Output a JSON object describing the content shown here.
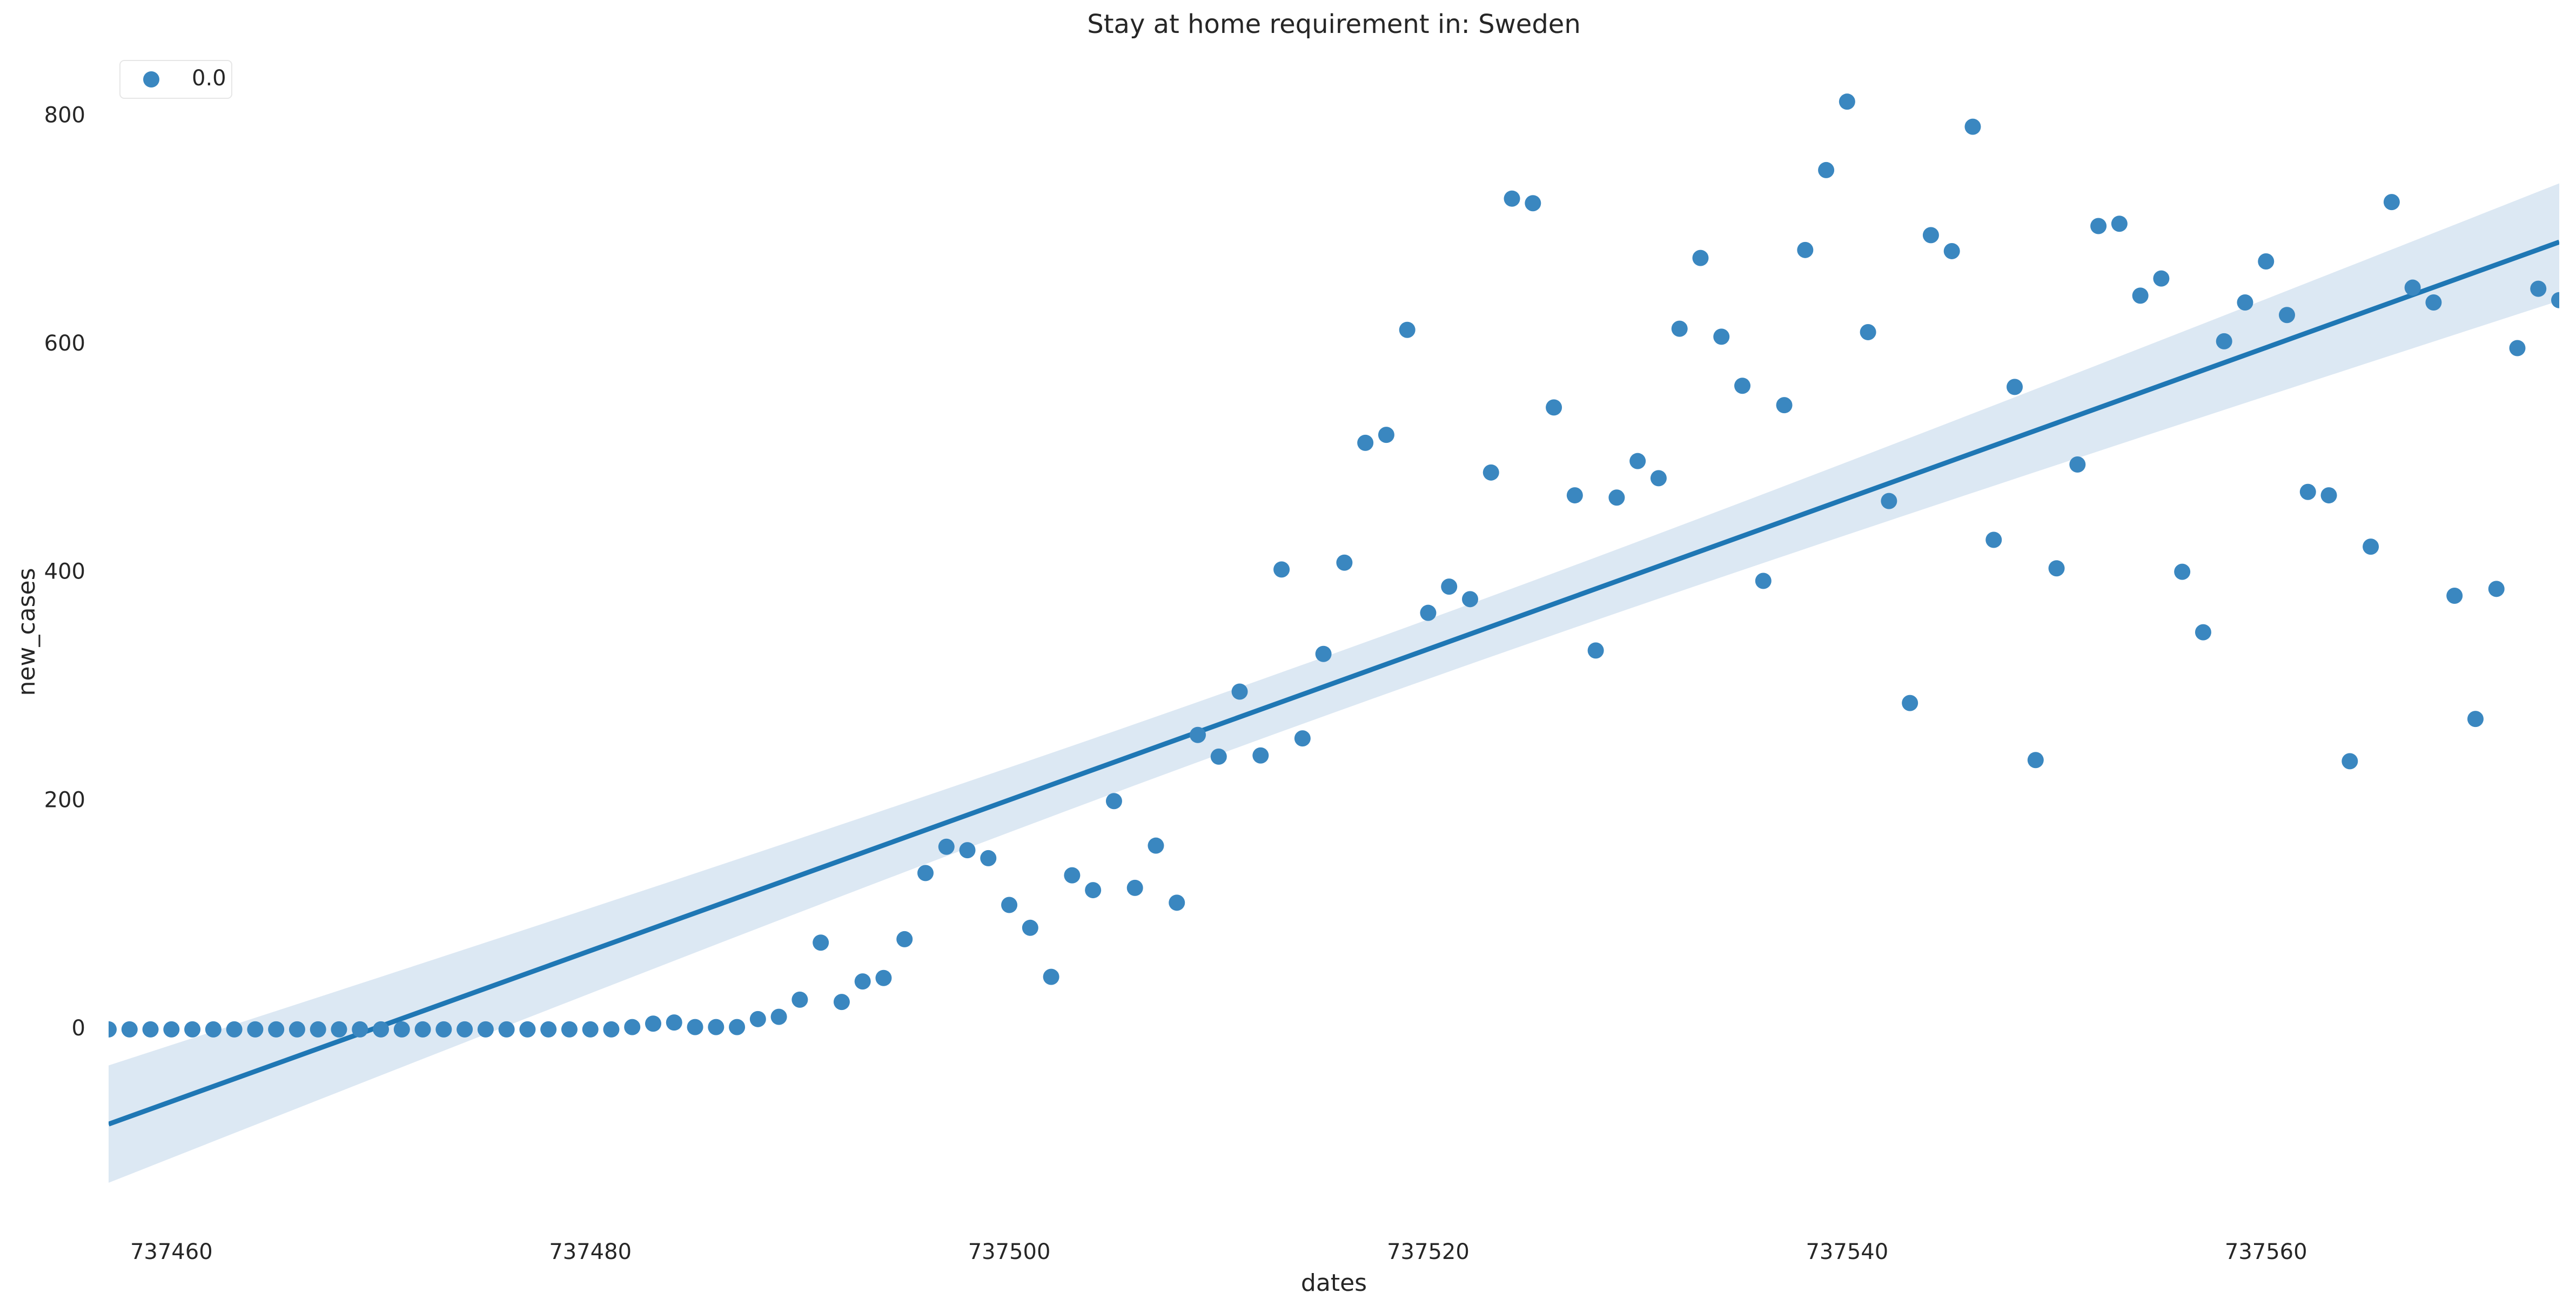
{
  "chart_data": {
    "type": "scatter",
    "title": "Stay at home requirement in: Sweden",
    "x_label": "dates",
    "y_label": "new_cases",
    "x": [
      737457,
      737458,
      737459,
      737460,
      737461,
      737462,
      737463,
      737464,
      737465,
      737466,
      737467,
      737468,
      737469,
      737470,
      737471,
      737472,
      737473,
      737474,
      737475,
      737476,
      737477,
      737478,
      737479,
      737480,
      737481,
      737482,
      737483,
      737484,
      737485,
      737486,
      737487,
      737488,
      737489,
      737490,
      737491,
      737492,
      737493,
      737494,
      737495,
      737496,
      737497,
      737498,
      737499,
      737500,
      737501,
      737502,
      737503,
      737504,
      737505,
      737506,
      737507,
      737508,
      737509,
      737510,
      737511,
      737512,
      737513,
      737514,
      737515,
      737516,
      737517,
      737518,
      737519,
      737520,
      737521,
      737522,
      737523,
      737524,
      737525,
      737526,
      737527,
      737528,
      737529,
      737530,
      737531,
      737532,
      737533,
      737534,
      737535,
      737536,
      737537,
      737538,
      737539,
      737540,
      737541,
      737542,
      737543,
      737544,
      737545,
      737546,
      737547,
      737548,
      737549,
      737550,
      737551,
      737552,
      737553,
      737554,
      737555,
      737556,
      737557,
      737558,
      737559,
      737560,
      737561,
      737562,
      737563,
      737564,
      737565,
      737566,
      737567,
      737568,
      737569,
      737570,
      737571,
      737572,
      737573,
      737574
    ],
    "series": [
      {
        "name": "0.0",
        "color": "#3a87c0",
        "values": [
          0,
          0,
          0,
          0,
          0,
          0,
          0,
          0,
          0,
          0,
          0,
          0,
          0,
          0,
          0,
          0,
          0,
          0,
          0,
          0,
          0,
          0,
          0,
          0,
          0,
          2,
          5,
          6,
          2,
          2,
          2,
          9,
          11,
          26,
          76,
          24,
          42,
          45,
          79,
          137,
          160,
          157,
          150,
          109,
          89,
          46,
          135,
          122,
          200,
          124,
          161,
          111,
          258,
          239,
          296,
          240,
          403,
          255,
          329,
          409,
          514,
          521,
          613,
          365,
          388,
          377,
          488,
          728,
          724,
          545,
          468,
          332,
          466,
          498,
          483,
          614,
          676,
          607,
          564,
          393,
          547,
          683,
          753,
          813,
          611,
          463,
          286,
          696,
          682,
          791,
          429,
          563,
          236,
          404,
          495,
          704,
          706,
          643,
          658,
          401,
          348,
          603,
          637,
          673,
          626,
          471,
          468,
          235,
          423,
          725,
          650,
          637,
          380,
          272,
          386,
          597,
          649,
          639
        ]
      }
    ],
    "xlim": [
      737457,
      737574
    ],
    "ylim": [
      -170,
      850
    ],
    "xticks": [
      737460,
      737480,
      737500,
      737520,
      737540,
      737560
    ],
    "yticks": [
      0,
      200,
      400,
      600,
      800
    ],
    "grid": false,
    "legend": "upper left",
    "regression": true,
    "line_color": "#1f77b4",
    "band_color": "#dce8f3"
  }
}
